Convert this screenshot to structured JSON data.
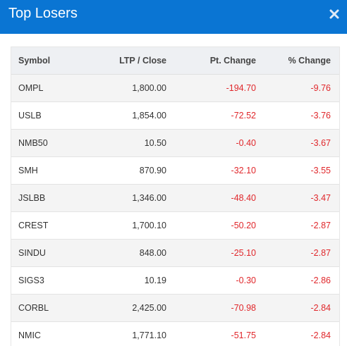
{
  "header": {
    "title": "Top Losers"
  },
  "table": {
    "columns": {
      "symbol": "Symbol",
      "ltp": "LTP / Close",
      "pt_change": "Pt. Change",
      "pct_change": "% Change"
    },
    "rows": [
      {
        "symbol": "OMPL",
        "ltp": "1,800.00",
        "pt_change": "-194.70",
        "pct_change": "-9.76"
      },
      {
        "symbol": "USLB",
        "ltp": "1,854.00",
        "pt_change": "-72.52",
        "pct_change": "-3.76"
      },
      {
        "symbol": "NMB50",
        "ltp": "10.50",
        "pt_change": "-0.40",
        "pct_change": "-3.67"
      },
      {
        "symbol": "SMH",
        "ltp": "870.90",
        "pt_change": "-32.10",
        "pct_change": "-3.55"
      },
      {
        "symbol": "JSLBB",
        "ltp": "1,346.00",
        "pt_change": "-48.40",
        "pct_change": "-3.47"
      },
      {
        "symbol": "CREST",
        "ltp": "1,700.10",
        "pt_change": "-50.20",
        "pct_change": "-2.87"
      },
      {
        "symbol": "SINDU",
        "ltp": "848.00",
        "pt_change": "-25.10",
        "pct_change": "-2.87"
      },
      {
        "symbol": "SIGS3",
        "ltp": "10.19",
        "pt_change": "-0.30",
        "pct_change": "-2.86"
      },
      {
        "symbol": "CORBL",
        "ltp": "2,425.00",
        "pt_change": "-70.98",
        "pct_change": "-2.84"
      },
      {
        "symbol": "NMIC",
        "ltp": "1,771.10",
        "pt_change": "-51.75",
        "pct_change": "-2.84"
      }
    ]
  },
  "colors": {
    "header_bg": "#0a75d3",
    "negative": "#e0272b"
  },
  "icons": {
    "close": "close-icon"
  }
}
